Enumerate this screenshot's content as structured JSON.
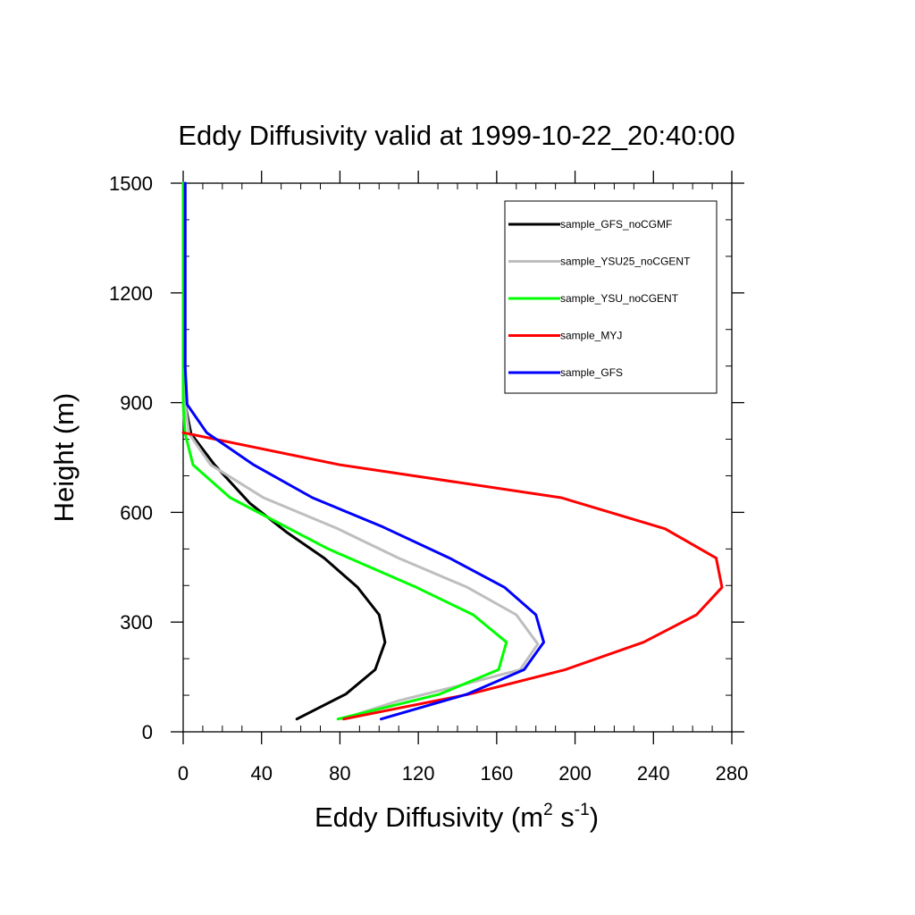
{
  "chart_data": {
    "type": "line",
    "title": "Eddy Diffusivity valid at 1999-10-22_20:40:00",
    "xlabel": "Eddy Diffusivity (m",
    "xlabel_sup1": "2",
    "xlabel_mid": " s",
    "xlabel_sup2": "-1",
    "xlabel_end": ")",
    "ylabel": "Height (m)",
    "xlim": [
      0,
      280
    ],
    "ylim": [
      0,
      1500
    ],
    "x_ticks": [
      "0",
      "40",
      "80",
      "120",
      "160",
      "200",
      "240",
      "280"
    ],
    "y_ticks": [
      "0",
      "300",
      "600",
      "900",
      "1200",
      "1500"
    ],
    "x_tick_values": [
      0,
      40,
      80,
      120,
      160,
      200,
      240,
      280
    ],
    "y_tick_values": [
      0,
      300,
      600,
      900,
      1200,
      1500
    ],
    "legend_position": "top-right",
    "series": [
      {
        "name": "sample_GFS_noCGMF",
        "color": "#000000",
        "points": [
          [
            58,
            35
          ],
          [
            83,
            103
          ],
          [
            98,
            170
          ],
          [
            103,
            245
          ],
          [
            100,
            320
          ],
          [
            89,
            395
          ],
          [
            72,
            475
          ],
          [
            53,
            545
          ],
          [
            34,
            625
          ],
          [
            16,
            730
          ],
          [
            4,
            815
          ],
          [
            1,
            895
          ],
          [
            1,
            1000
          ],
          [
            1,
            1100
          ],
          [
            1,
            1200
          ],
          [
            1,
            1300
          ],
          [
            1,
            1400
          ],
          [
            1,
            1500
          ]
        ]
      },
      {
        "name": "sample_YSU25_noCGENT",
        "color": "#bebebe",
        "points": [
          [
            81,
            35
          ],
          [
            110,
            85
          ],
          [
            140,
            125
          ],
          [
            172,
            170
          ],
          [
            181,
            240
          ],
          [
            170,
            320
          ],
          [
            145,
            395
          ],
          [
            110,
            475
          ],
          [
            79,
            555
          ],
          [
            41,
            640
          ],
          [
            14,
            730
          ],
          [
            3,
            815
          ],
          [
            1,
            895
          ],
          [
            1,
            1000
          ],
          [
            1,
            1100
          ],
          [
            1,
            1200
          ],
          [
            1,
            1300
          ],
          [
            1,
            1400
          ],
          [
            1,
            1500
          ]
        ]
      },
      {
        "name": "sample_YSU_noCGENT",
        "color": "#00ff00",
        "points": [
          [
            79,
            35
          ],
          [
            131,
            103
          ],
          [
            161,
            170
          ],
          [
            165,
            245
          ],
          [
            148,
            320
          ],
          [
            119,
            395
          ],
          [
            74,
            500
          ],
          [
            24,
            640
          ],
          [
            5,
            730
          ],
          [
            1,
            815
          ],
          [
            0,
            895
          ],
          [
            0,
            1000
          ],
          [
            0,
            1100
          ],
          [
            0,
            1200
          ],
          [
            0,
            1300
          ],
          [
            0,
            1400
          ],
          [
            0,
            1500
          ]
        ]
      },
      {
        "name": "sample_MYJ",
        "color": "#ff0000",
        "points": [
          [
            82,
            35
          ],
          [
            146,
            103
          ],
          [
            195,
            170
          ],
          [
            235,
            245
          ],
          [
            262,
            320
          ],
          [
            275,
            395
          ],
          [
            272,
            475
          ],
          [
            246,
            555
          ],
          [
            193,
            640
          ],
          [
            80,
            730
          ],
          [
            0,
            818
          ]
        ]
      },
      {
        "name": "sample_GFS",
        "color": "#0000ff",
        "points": [
          [
            101,
            35
          ],
          [
            145,
            103
          ],
          [
            174,
            170
          ],
          [
            184,
            245
          ],
          [
            180,
            320
          ],
          [
            164,
            395
          ],
          [
            136,
            475
          ],
          [
            102,
            560
          ],
          [
            66,
            640
          ],
          [
            36,
            730
          ],
          [
            12,
            818
          ],
          [
            2,
            895
          ],
          [
            1,
            1000
          ],
          [
            1,
            1100
          ],
          [
            1,
            1200
          ],
          [
            1,
            1300
          ],
          [
            1,
            1400
          ],
          [
            1,
            1500
          ]
        ]
      }
    ]
  }
}
